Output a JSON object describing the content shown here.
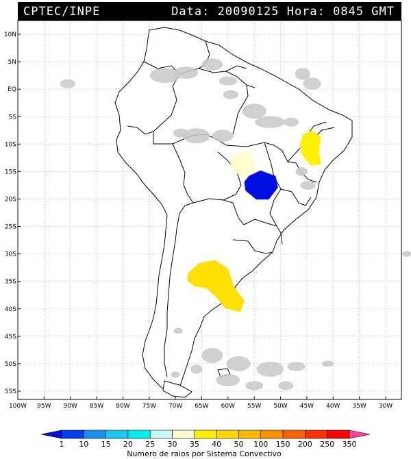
{
  "header": {
    "left_text": "CPTEC/INPE",
    "right_text": "Data: 20090125 Hora: 0845 GMT"
  },
  "axes": {
    "lat_labels": [
      "10N",
      "5N",
      "EQ",
      "5S",
      "10S",
      "15S",
      "20S",
      "25S",
      "30S",
      "35S",
      "40S",
      "45S",
      "50S",
      "55S"
    ],
    "lat_values": [
      10,
      5,
      0,
      -5,
      -10,
      -15,
      -20,
      -25,
      -30,
      -35,
      -40,
      -45,
      -50,
      -55
    ],
    "lon_labels": [
      "100W",
      "95W",
      "90W",
      "85W",
      "80W",
      "75W",
      "70W",
      "65W",
      "60W",
      "55W",
      "50W",
      "45W",
      "40W",
      "35W",
      "30W"
    ],
    "lon_values": [
      -100,
      -95,
      -90,
      -85,
      -80,
      -75,
      -70,
      -65,
      -60,
      -55,
      -50,
      -45,
      -40,
      -35,
      -30
    ],
    "lon_range": [
      -100,
      -27
    ],
    "lat_range": [
      -56.5,
      12.5
    ],
    "grid": "dotted"
  },
  "legend": {
    "title": "Numero de raios por Sistema Convectivo",
    "labels": [
      "1",
      "10",
      "15",
      "20",
      "25",
      "30",
      "35",
      "40",
      "50",
      "100",
      "150",
      "200",
      "250",
      "350"
    ],
    "colors": [
      "#0010e0",
      "#0040f0",
      "#1890f0",
      "#18c8f0",
      "#00f0f0",
      "#c8f8f8",
      "#fffcd0",
      "#fff000",
      "#ffd800",
      "#ffb800",
      "#ff9000",
      "#ff6000",
      "#ff3000",
      "#ff0000",
      "#ff40a0"
    ]
  },
  "cloud_color": "#c8c8c8",
  "systems": [
    {
      "name": "amazon-system",
      "lon": -57.2,
      "lat": -13.3,
      "color": "#fffcd0"
    },
    {
      "name": "bahia-system",
      "lon": -44.2,
      "lat": -10.8,
      "color": "#fff000"
    },
    {
      "name": "mato-grosso-system",
      "lon": -53.8,
      "lat": -17.4,
      "color": "#0010e0"
    },
    {
      "name": "argentina-system",
      "lon": -61.5,
      "lat": -34.0,
      "color": "#ffe000"
    }
  ]
}
